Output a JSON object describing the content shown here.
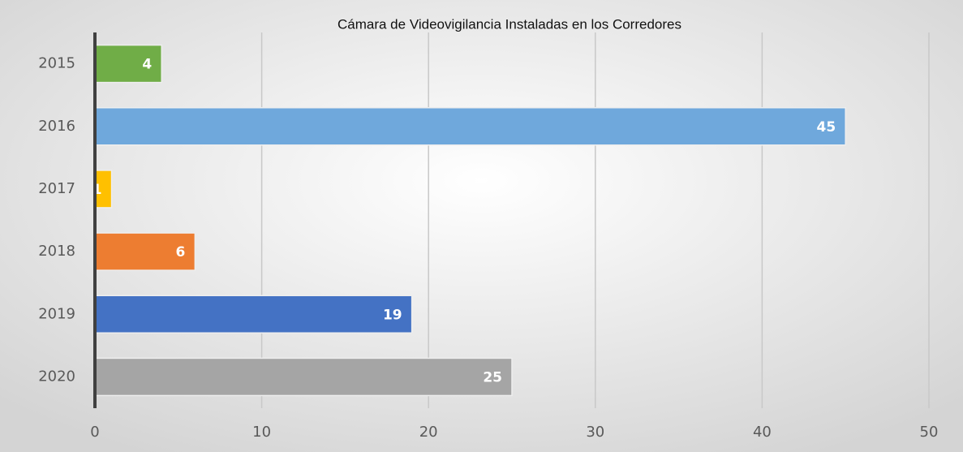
{
  "chart_data": {
    "type": "bar",
    "orientation": "horizontal",
    "title": "Cámara de Videovigilancia Instaladas en los Corredores",
    "categories": [
      "2015",
      "2016",
      "2017",
      "2018",
      "2019",
      "2020"
    ],
    "values": [
      4,
      45,
      1,
      6,
      19,
      25
    ],
    "colors": [
      "#70ad47",
      "#6fa8dc",
      "#ffc000",
      "#ed7d31",
      "#4472c4",
      "#a5a5a5"
    ],
    "xlim": [
      0,
      50
    ],
    "xticks": [
      0,
      10,
      20,
      30,
      40,
      50
    ],
    "grid": true
  }
}
